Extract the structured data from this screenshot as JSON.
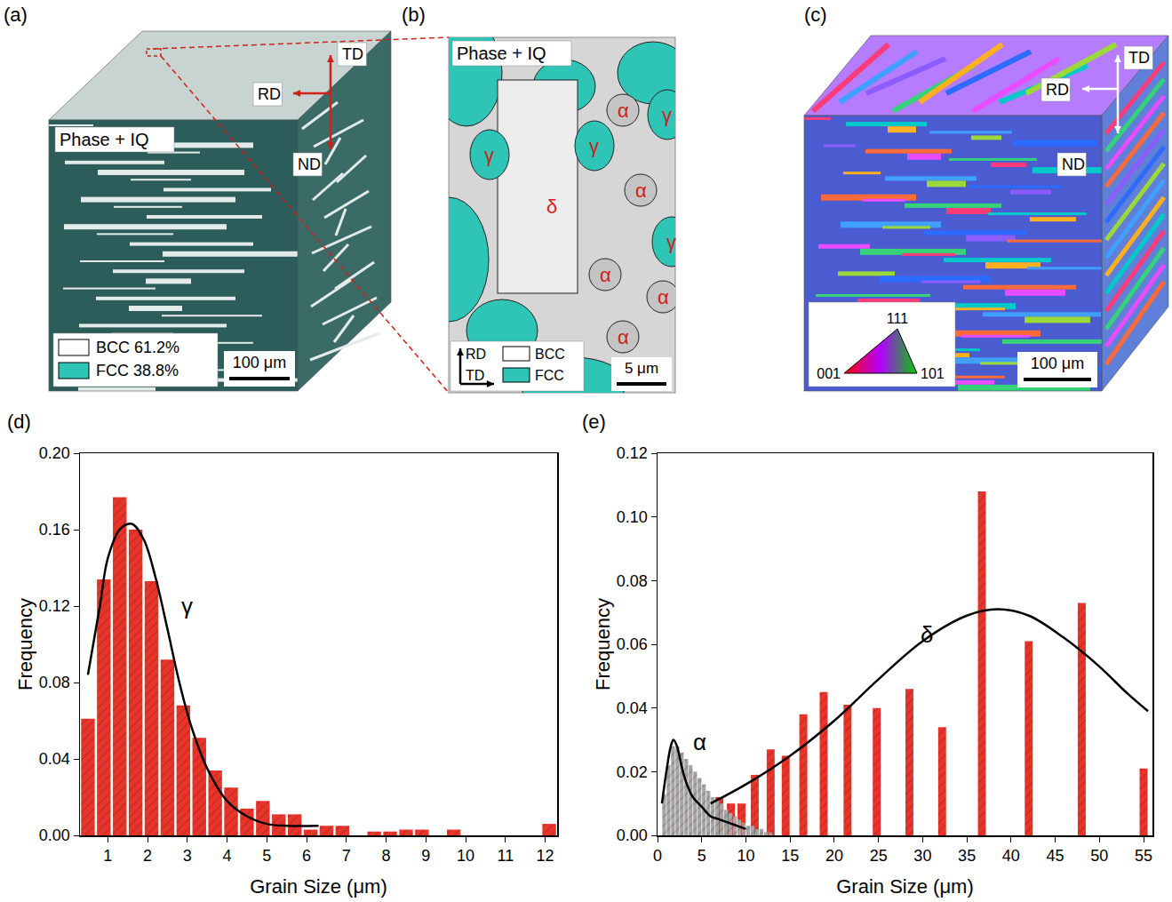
{
  "panels": [
    {
      "label": "(a)",
      "title": "Phase + IQ",
      "directions": [
        "RD",
        "TD",
        "ND"
      ],
      "legend": [
        {
          "text": "BCC 61.2%",
          "color": "#ffffff"
        },
        {
          "text": "FCC 38.8%",
          "color": "#2ec4b6"
        }
      ],
      "scale_bar": "100 μm"
    },
    {
      "label": "(b)",
      "title": "Phase + IQ",
      "phases": [
        "γ",
        "α",
        "γ",
        "δ",
        "γ",
        "α",
        "γ",
        "α",
        "α",
        "α"
      ],
      "directions": [
        "RD",
        "TD"
      ],
      "legend": [
        {
          "text": "BCC",
          "color": "#ffffff"
        },
        {
          "text": "FCC",
          "color": "#2ec4b6"
        }
      ],
      "scale_bar": "5 μm"
    },
    {
      "label": "(c)",
      "directions": [
        "RD",
        "TD",
        "ND"
      ],
      "ipf": [
        "111",
        "001",
        "101"
      ],
      "scale_bar": "100 μm"
    }
  ],
  "chart_data": [
    {
      "label": "(d)",
      "type": "histogram",
      "xlabel": "Grain Size (μm)",
      "ylabel": "Frequency",
      "grid": false,
      "xlim": [
        0.3,
        12.3
      ],
      "xticks": [
        1,
        2,
        3,
        4,
        5,
        6,
        7,
        8,
        9,
        10,
        11,
        12
      ],
      "ylim": [
        0,
        0.2
      ],
      "yticks": [
        {
          "value": 0,
          "label": "0.00"
        },
        {
          "value": 0.04,
          "label": "0.04"
        },
        {
          "value": 0.08,
          "label": "0.08"
        },
        {
          "value": 0.12,
          "label": "0.12"
        },
        {
          "value": 0.16,
          "label": "0.16"
        },
        {
          "value": 0.2,
          "label": "0.20"
        }
      ],
      "series": [
        {
          "type": "histogram",
          "color": "#e8352b",
          "bins": [
            0.3,
            0.7,
            1.1,
            1.5,
            1.9,
            2.3,
            2.7,
            3.1,
            3.5,
            3.9,
            4.3,
            4.7,
            5.1,
            5.5,
            5.9,
            6.3,
            6.7,
            7.1,
            7.5,
            7.9,
            8.3,
            8.7,
            9.1,
            9.5,
            9.9,
            10.3,
            10.7,
            11.1,
            11.5,
            11.9,
            12.3
          ],
          "values": [
            0.061,
            0.134,
            0.177,
            0.16,
            0.133,
            0.092,
            0.068,
            0.051,
            0.034,
            0.025,
            0.014,
            0.018,
            0.011,
            0.011,
            0.003,
            0.005,
            0.005,
            0,
            0.002,
            0.002,
            0.003,
            0.003,
            0,
            0.003,
            0,
            0,
            0,
            0,
            0,
            0.006
          ]
        },
        {
          "type": "line",
          "color": "#000000",
          "label": "γ",
          "x": [
            0.5,
            0.8,
            1.0,
            1.3,
            1.6,
            1.9,
            2.2,
            2.5,
            2.8,
            3.1,
            3.5,
            4.0,
            4.5,
            5.0,
            5.5,
            6.3
          ],
          "values": [
            0.084,
            0.12,
            0.145,
            0.16,
            0.163,
            0.155,
            0.135,
            0.108,
            0.08,
            0.057,
            0.035,
            0.018,
            0.01,
            0.006,
            0.005,
            0.005
          ]
        }
      ]
    },
    {
      "label": "(e)",
      "type": "histogram",
      "xlabel": "Grain Size (μm)",
      "ylabel": "Frequency",
      "grid": false,
      "xlim": [
        0,
        56
      ],
      "xticks": [
        0,
        5,
        10,
        15,
        20,
        25,
        30,
        35,
        40,
        45,
        50,
        55
      ],
      "ylim": [
        0,
        0.12
      ],
      "yticks": [
        {
          "value": 0,
          "label": "0.00"
        },
        {
          "value": 0.02,
          "label": "0.02"
        },
        {
          "value": 0.04,
          "label": "0.04"
        },
        {
          "value": 0.06,
          "label": "0.06"
        },
        {
          "value": 0.08,
          "label": "0.08"
        },
        {
          "value": 0.1,
          "label": "0.10"
        },
        {
          "value": 0.12,
          "label": "0.12"
        }
      ],
      "series": [
        {
          "type": "bar",
          "color": "#e8352b",
          "x": [
            7,
            8.3,
            9.5,
            11,
            12.8,
            14.5,
            16.5,
            18.8,
            21.5,
            24.8,
            28.5,
            32.2,
            36.7,
            42,
            48,
            55
          ],
          "values": [
            0.012,
            0.01,
            0.01,
            0.019,
            0.027,
            0.025,
            0.038,
            0.045,
            0.041,
            0.04,
            0.046,
            0.034,
            0.108,
            0.061,
            0.073,
            0.021
          ]
        },
        {
          "type": "histogram",
          "color": "#a6a6a6",
          "bins": [
            0.5,
            1,
            1.5,
            2,
            2.5,
            3,
            3.5,
            4,
            4.5,
            5,
            5.5,
            6,
            6.5,
            7,
            7.5,
            8,
            8.5,
            9,
            9.5,
            10,
            10.5,
            11,
            11.5,
            12,
            12.5,
            13
          ],
          "values": [
            0.013,
            0.022,
            0.028,
            0.028,
            0.026,
            0.024,
            0.022,
            0.02,
            0.018,
            0.016,
            0.014,
            0.012,
            0.011,
            0.01,
            0.008,
            0.007,
            0.006,
            0.005,
            0.004,
            0.003,
            0.003,
            0.002,
            0.002,
            0.001,
            0.001
          ]
        },
        {
          "type": "line",
          "color": "#000000",
          "label": "α",
          "x": [
            0.5,
            1,
            1.5,
            1.8,
            2.2,
            2.7,
            3.2,
            4,
            5,
            6,
            7,
            8,
            9,
            10
          ],
          "values": [
            0.01,
            0.02,
            0.028,
            0.03,
            0.028,
            0.022,
            0.017,
            0.012,
            0.009,
            0.006,
            0.005,
            0.004,
            0.003,
            0.002
          ]
        },
        {
          "type": "line",
          "color": "#000000",
          "label": "δ",
          "x": [
            6,
            10,
            15,
            20,
            25,
            30,
            35,
            38.5,
            42,
            46,
            50,
            53,
            55.5
          ],
          "values": [
            0.01,
            0.016,
            0.025,
            0.036,
            0.049,
            0.061,
            0.069,
            0.071,
            0.069,
            0.062,
            0.053,
            0.045,
            0.039
          ]
        }
      ]
    }
  ]
}
